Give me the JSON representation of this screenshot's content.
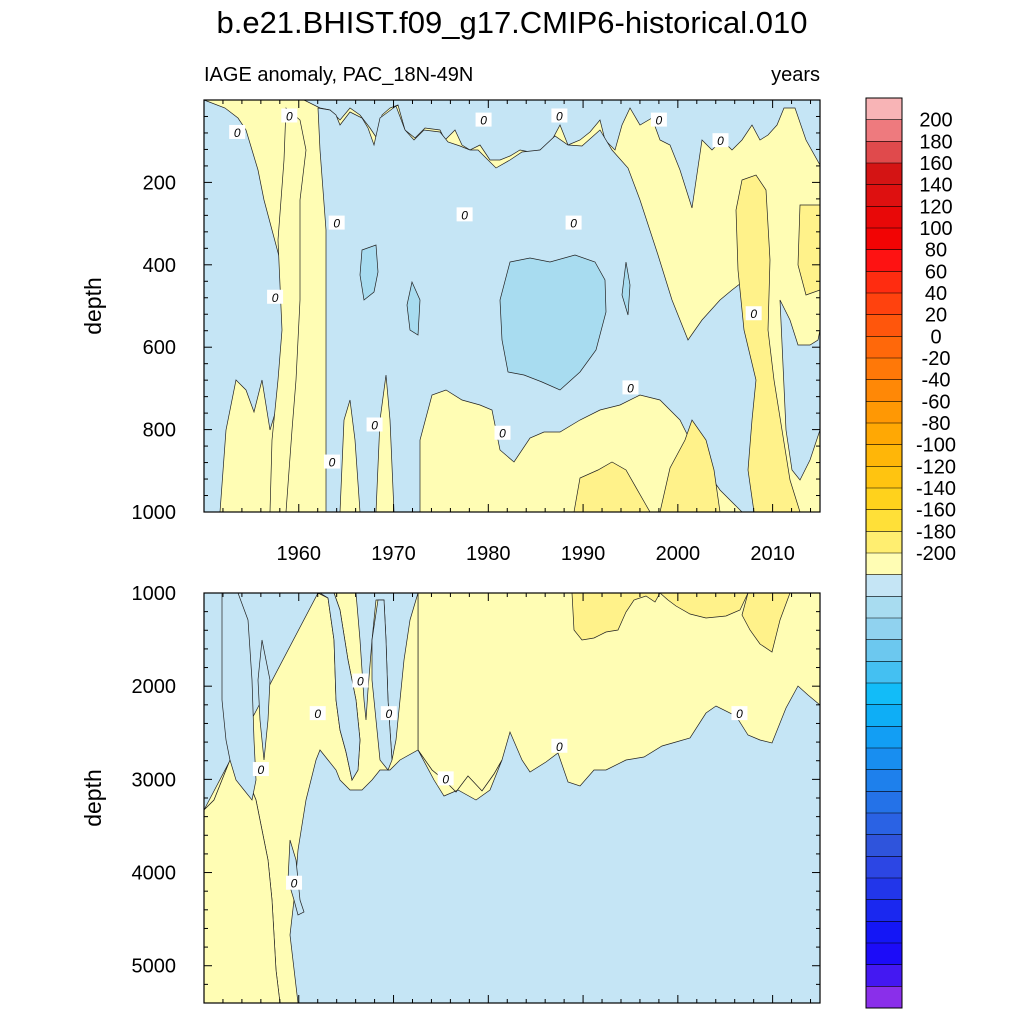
{
  "chart_data": {
    "type": "heatmap",
    "title": "b.e21.BHIST.f09_g17.CMIP6-historical.010",
    "left_string": "IAGE anomaly, PAC_18N-49N",
    "right_string": "years",
    "ylabel": "depth",
    "x_range": [
      1950,
      2015
    ],
    "x_ticks": [
      {
        "value": 1960,
        "label": "1960"
      },
      {
        "value": 1970,
        "label": "1970"
      },
      {
        "value": 1980,
        "label": "1980"
      },
      {
        "value": 1990,
        "label": "1990"
      },
      {
        "value": 2000,
        "label": "2000"
      },
      {
        "value": 2010,
        "label": "2010"
      }
    ],
    "top_panel": {
      "y_range": [
        0,
        1000
      ],
      "y_ticks": [
        {
          "value": 200,
          "label": "200"
        },
        {
          "value": 400,
          "label": "400"
        },
        {
          "value": 600,
          "label": "600"
        },
        {
          "value": 800,
          "label": "800"
        },
        {
          "value": 1000,
          "label": "1000"
        }
      ],
      "zero_contour_labels": [
        {
          "year": 1953.5,
          "depth": 80,
          "text": "0"
        },
        {
          "year": 1959,
          "depth": 40,
          "text": "0"
        },
        {
          "year": 1979.5,
          "depth": 50,
          "text": "0"
        },
        {
          "year": 1987.5,
          "depth": 40,
          "text": "0"
        },
        {
          "year": 1998,
          "depth": 50,
          "text": "0"
        },
        {
          "year": 2004.5,
          "depth": 100,
          "text": "0"
        },
        {
          "year": 1964,
          "depth": 300,
          "text": "0"
        },
        {
          "year": 1977.5,
          "depth": 280,
          "text": "0"
        },
        {
          "year": 1989,
          "depth": 300,
          "text": "0"
        },
        {
          "year": 1957.5,
          "depth": 480,
          "text": "0"
        },
        {
          "year": 2008,
          "depth": 520,
          "text": "0"
        },
        {
          "year": 1995,
          "depth": 700,
          "text": "0"
        },
        {
          "year": 1968,
          "depth": 790,
          "text": "0"
        },
        {
          "year": 1981.5,
          "depth": 810,
          "text": "0"
        },
        {
          "year": 1963.5,
          "depth": 880,
          "text": "0"
        }
      ]
    },
    "bottom_panel": {
      "y_range": [
        1000,
        5400
      ],
      "y_ticks": [
        {
          "value": 1000,
          "label": "1000"
        },
        {
          "value": 2000,
          "label": "2000"
        },
        {
          "value": 3000,
          "label": "3000"
        },
        {
          "value": 4000,
          "label": "4000"
        },
        {
          "value": 5000,
          "label": "5000"
        }
      ],
      "zero_contour_labels": [
        {
          "year": 1966.5,
          "depth": 1950,
          "text": "0"
        },
        {
          "year": 1962,
          "depth": 2300,
          "text": "0"
        },
        {
          "year": 1969.5,
          "depth": 2300,
          "text": "0"
        },
        {
          "year": 2006.5,
          "depth": 2300,
          "text": "0"
        },
        {
          "year": 1956,
          "depth": 2900,
          "text": "0"
        },
        {
          "year": 1987.5,
          "depth": 2650,
          "text": "0"
        },
        {
          "year": 1975.5,
          "depth": 3000,
          "text": "0"
        },
        {
          "year": 1959.5,
          "depth": 4120,
          "text": "0"
        }
      ]
    },
    "colorbar": {
      "labels": [
        "200",
        "180",
        "160",
        "140",
        "120",
        "100",
        "80",
        "60",
        "40",
        "20",
        "0",
        "-20",
        "-40",
        "-60",
        "-80",
        "-100",
        "-120",
        "-140",
        "-160",
        "-180",
        "-200"
      ],
      "colors": [
        "#f8b4b6",
        "#ee7a7e",
        "#e04a4c",
        "#d41414",
        "#de1010",
        "#e80808",
        "#f20404",
        "#fe1212",
        "#ff2c10",
        "#ff420e",
        "#ff560c",
        "#ff680a",
        "#ff7808",
        "#ff8806",
        "#ff9804",
        "#ffa804",
        "#ffb608",
        "#ffc410",
        "#ffd21c",
        "#ffe038",
        "#ffee70",
        "#fffdb4",
        "#c5e5f5",
        "#a8dcf0",
        "#90d2ef",
        "#6cc8ef",
        "#44c0f2",
        "#12bcf8",
        "#0eaef6",
        "#129ef4",
        "#188ef0",
        "#1e80ec",
        "#2472e8",
        "#2a62e4",
        "#2f54dc",
        "#2c46e4",
        "#2236ea",
        "#1a28f0",
        "#1416f6",
        "#1c0cf8",
        "#4418f2",
        "#8a2fea"
      ]
    },
    "fill_colors": {
      "pos_0_20": "#fffdb4",
      "pos_20_40": "#fff28a",
      "neg_0_20": "#c5e5f5",
      "neg_20_40": "#a8dcf0"
    }
  }
}
